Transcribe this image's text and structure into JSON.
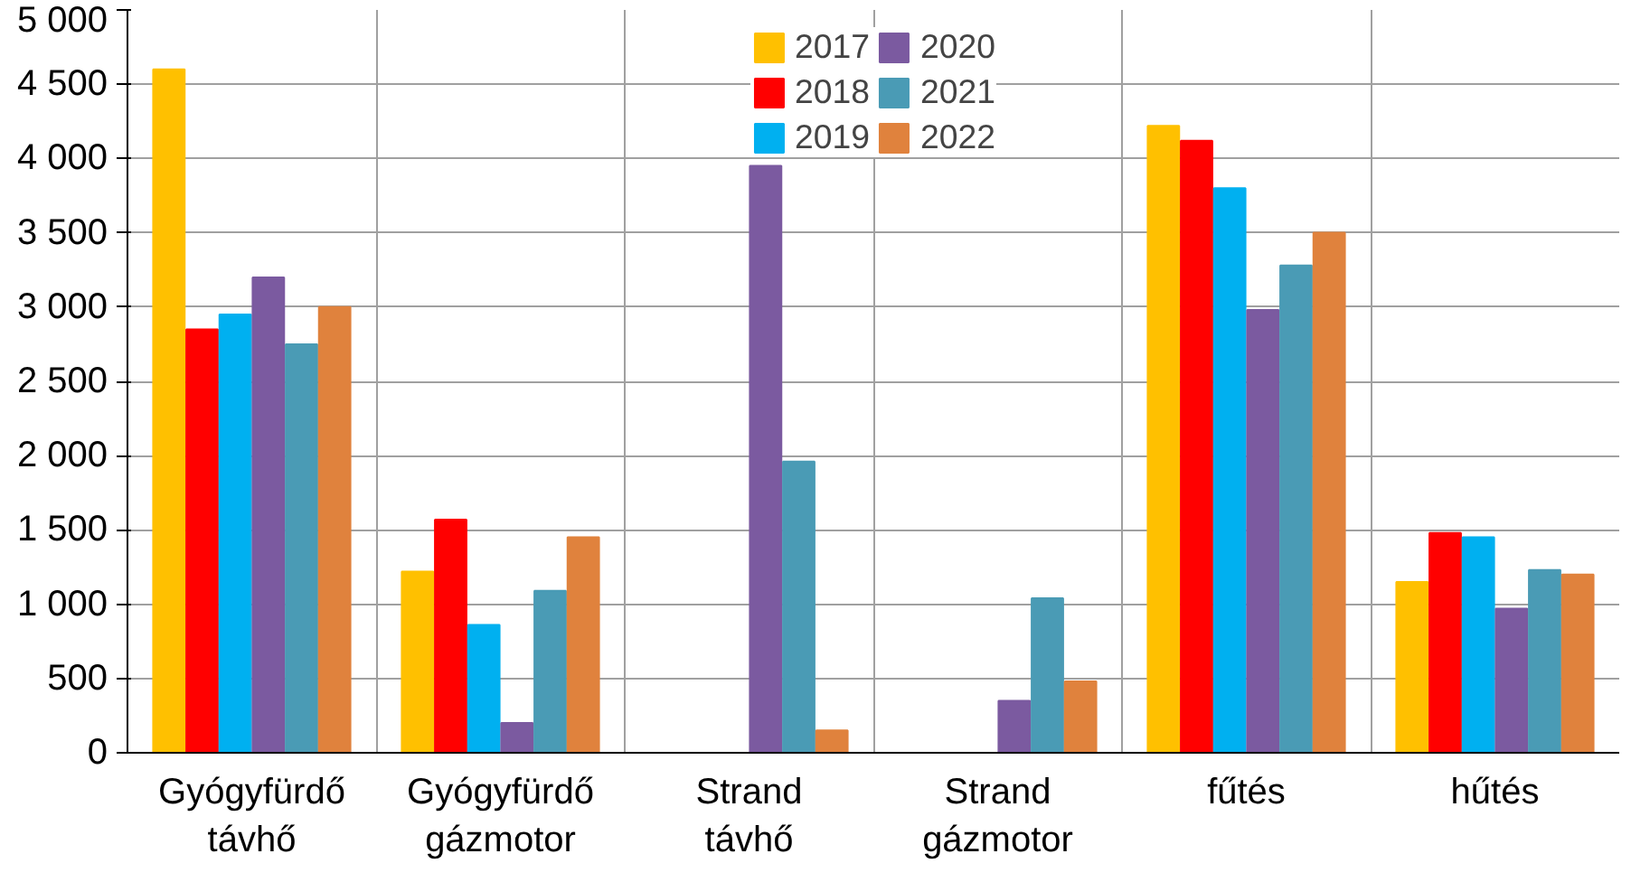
{
  "chart_data": {
    "type": "bar",
    "categories": [
      "Gyógyfürdő távhő",
      "Gyógyfürdő gázmotor",
      "Strand távhő",
      "Strand gázmotor",
      "fűtés",
      "hűtés"
    ],
    "series": [
      {
        "name": "2017",
        "color": "#ffc000",
        "values": [
          4600,
          1220,
          null,
          null,
          4220,
          1150
        ]
      },
      {
        "name": "2018",
        "color": "#ff0000",
        "values": [
          2850,
          1570,
          null,
          null,
          4120,
          1480
        ]
      },
      {
        "name": "2019",
        "color": "#00b0f0",
        "values": [
          2950,
          860,
          null,
          null,
          3800,
          1450
        ]
      },
      {
        "name": "2020",
        "color": "#7b5aa0",
        "values": [
          3200,
          200,
          3950,
          350,
          2980,
          970
        ]
      },
      {
        "name": "2021",
        "color": "#4a9bb5",
        "values": [
          2750,
          1090,
          1960,
          1040,
          3280,
          1230
        ]
      },
      {
        "name": "2022",
        "color": "#e0823d",
        "values": [
          3000,
          1450,
          150,
          480,
          3500,
          1200
        ]
      }
    ],
    "ylim": [
      0,
      5000
    ],
    "yticks": [
      0,
      500,
      {
        "value": 1000,
        "label": "1 000"
      },
      {
        "value": 1500,
        "label": "1 500"
      },
      {
        "value": 2000,
        "label": "2 000"
      },
      {
        "value": 2500,
        "label": "2 500"
      },
      {
        "value": 3000,
        "label": "3 000"
      },
      {
        "value": 3500,
        "label": "3 500"
      },
      {
        "value": 4000,
        "label": "4 000"
      },
      {
        "value": 4500,
        "label": "4 500"
      },
      {
        "value": 5000,
        "label": "5 000"
      }
    ],
    "grid": true,
    "legend": "top"
  }
}
